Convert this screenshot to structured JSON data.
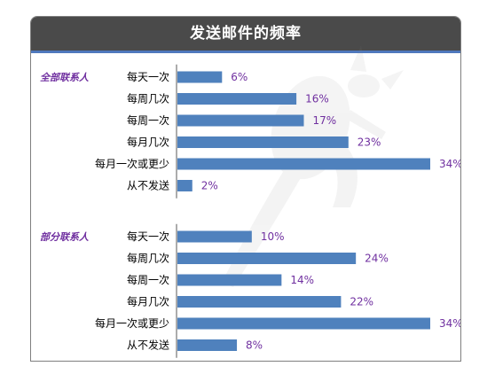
{
  "title": "发送邮件的频率",
  "colors": {
    "header_bg": "#4a4a4a",
    "accent_line": "#4f78bd",
    "bar": "#4f81bd",
    "value_text": "#7030a0",
    "group_text": "#7030a0",
    "category_text": "#000000"
  },
  "chart_data": {
    "type": "bar",
    "orientation": "horizontal",
    "title": "发送邮件的频率",
    "value_format": "percent",
    "categories": [
      "每天一次",
      "每周几次",
      "每周一次",
      "每月几次",
      "每月一次或更少",
      "从不发送"
    ],
    "series": [
      {
        "name": "全部联系人",
        "values": [
          6,
          16,
          17,
          23,
          34,
          2
        ]
      },
      {
        "name": "部分联系人",
        "values": [
          10,
          24,
          14,
          22,
          34,
          8
        ]
      }
    ],
    "xlim": [
      0,
      34
    ],
    "grid": false,
    "legend": "none"
  }
}
